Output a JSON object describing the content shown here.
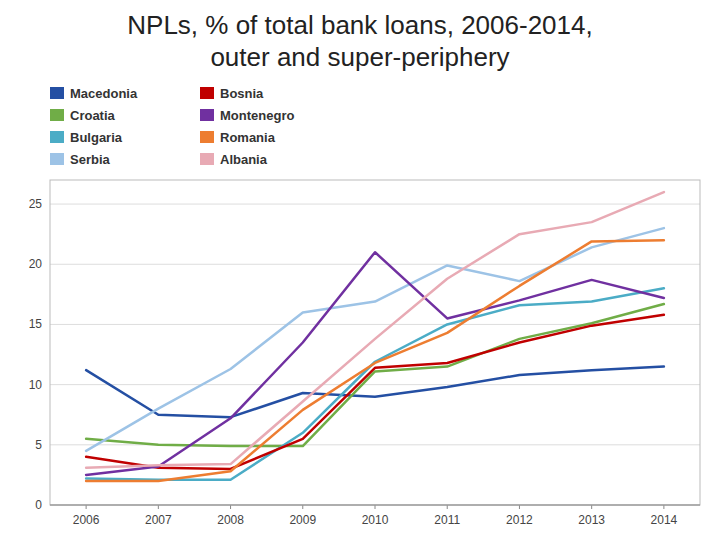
{
  "chart_data": {
    "type": "line",
    "title": "NPLs, % of total bank loans, 2006-2014,",
    "subtitle": "outer and super-periphery",
    "x": [
      2006,
      2007,
      2008,
      2009,
      2010,
      2011,
      2012,
      2013,
      2014
    ],
    "series": [
      {
        "name": "Macedonia",
        "color": "#244fa3",
        "values": [
          11.2,
          7.5,
          7.3,
          9.3,
          9.0,
          9.8,
          10.8,
          11.2,
          11.5
        ]
      },
      {
        "name": "Croatia",
        "color": "#70ad47",
        "values": [
          5.5,
          5.0,
          4.9,
          4.9,
          11.1,
          11.5,
          13.8,
          15.1,
          16.7
        ]
      },
      {
        "name": "Bulgaria",
        "color": "#4bacc6",
        "values": [
          2.2,
          2.1,
          2.1,
          6.0,
          11.9,
          15.0,
          16.6,
          16.9,
          18.0
        ]
      },
      {
        "name": "Serbia",
        "color": "#9dc3e6",
        "values": [
          4.5,
          8.0,
          11.3,
          16.0,
          16.9,
          19.9,
          18.6,
          21.4,
          23.0
        ]
      },
      {
        "name": "Bosnia",
        "color": "#c00000",
        "values": [
          4.0,
          3.1,
          3.0,
          5.5,
          11.4,
          11.8,
          13.5,
          14.9,
          15.8
        ]
      },
      {
        "name": "Montenegro",
        "color": "#7030a0",
        "values": [
          2.5,
          3.2,
          7.2,
          13.5,
          21.0,
          15.5,
          17.0,
          18.7,
          17.2
        ]
      },
      {
        "name": "Romania",
        "color": "#ed7d31",
        "values": [
          2.0,
          2.0,
          2.8,
          7.9,
          11.8,
          14.3,
          18.2,
          21.9,
          22.0
        ]
      },
      {
        "name": "Albania",
        "color": "#e8aab4",
        "values": [
          3.1,
          3.3,
          3.4,
          8.6,
          13.8,
          18.8,
          22.5,
          23.5,
          26.0
        ]
      }
    ],
    "xlim": [
      2005.5,
      2014.5
    ],
    "xticks": [
      2006,
      2007,
      2008,
      2009,
      2010,
      2011,
      2012,
      2013,
      2014
    ],
    "ylim": [
      0,
      27
    ],
    "yticks": [
      0,
      5,
      10,
      15,
      20,
      25
    ],
    "grid": true,
    "legend": "top-left"
  }
}
